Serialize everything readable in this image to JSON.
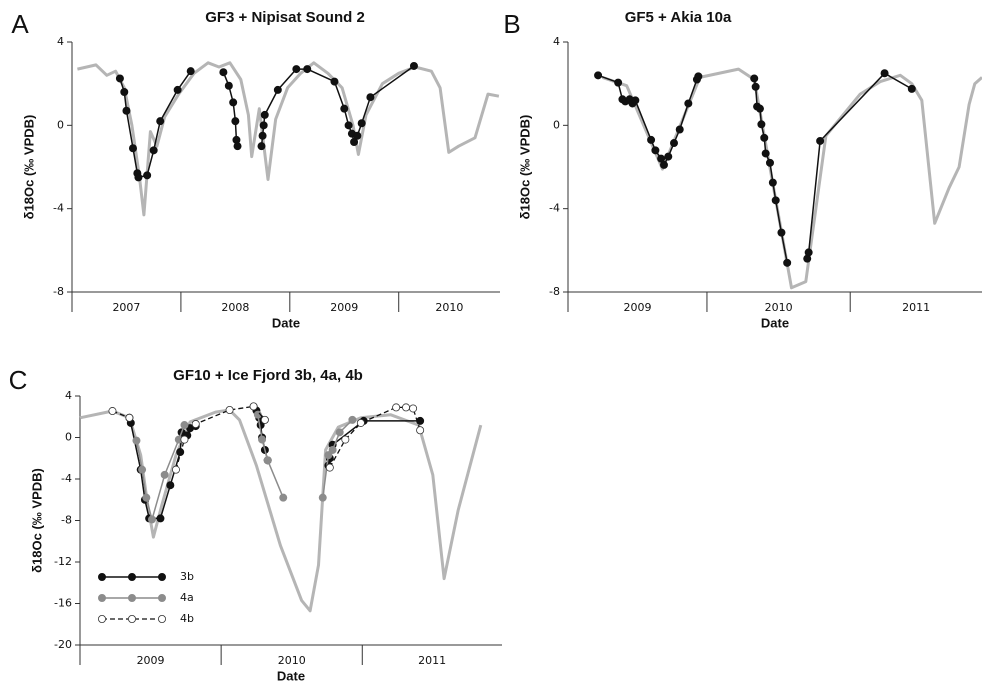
{
  "chart_data": [
    {
      "type": "line",
      "panel_label": "A",
      "title": "GF3 + Nipisat Sound 2",
      "xlabel": "Date",
      "ylabel": "δ18Oc (‰ VPDB)",
      "xlim": [
        2007,
        2010.93
      ],
      "xticks": [
        2008,
        2009,
        2010
      ],
      "categories": [
        "2007",
        "2008",
        "2009",
        "2010"
      ],
      "ylim": [
        -8,
        4
      ],
      "yticks": [
        4,
        0,
        -4,
        -8
      ],
      "series": [
        {
          "color": "#b5b5b5",
          "width": 3,
          "marker": "none",
          "x": [
            2007.05,
            2007.22,
            2007.32,
            2007.4,
            2007.48,
            2007.55,
            2007.62,
            2007.66,
            2007.72,
            2007.78,
            2007.85,
            2007.98,
            2008.12,
            2008.25,
            2008.35,
            2008.45,
            2008.55,
            2008.62,
            2008.65,
            2008.72,
            2008.8,
            2008.87,
            2008.98,
            2009.1,
            2009.22,
            2009.35,
            2009.48,
            2009.58,
            2009.63,
            2009.7,
            2009.85,
            2010.0,
            2010.15,
            2010.3,
            2010.38,
            2010.46,
            2010.55,
            2010.7,
            2010.82,
            2010.92
          ],
          "values": [
            2.7,
            2.9,
            2.4,
            2.6,
            1.8,
            0.0,
            -2.5,
            -4.3,
            -0.3,
            -1.0,
            0.4,
            1.5,
            2.5,
            3.0,
            2.8,
            3.0,
            2.2,
            0.5,
            -1.5,
            0.8,
            -2.6,
            0.3,
            1.8,
            2.5,
            3.0,
            2.5,
            1.8,
            0.0,
            -1.4,
            0.5,
            2.0,
            2.5,
            2.8,
            2.6,
            1.8,
            -1.3,
            -1.0,
            -0.6,
            1.5,
            1.4
          ]
        },
        {
          "color": "#111111",
          "width": 1.5,
          "marker": "filled",
          "x": [
            2007.44,
            2007.48,
            2007.5,
            2007.56,
            2007.6,
            2007.61,
            2007.69,
            2007.75,
            2007.81,
            2007.97,
            2008.09,
            null,
            2008.39,
            2008.44,
            2008.48,
            2008.5,
            2008.51,
            2008.52,
            null,
            2008.74,
            2008.75,
            2008.76,
            2008.77,
            2008.89,
            2009.06,
            2009.16,
            2009.41,
            2009.5,
            2009.54,
            2009.57,
            2009.59,
            2009.62,
            2009.66,
            2009.74,
            2010.14
          ],
          "values": [
            2.25,
            1.6,
            0.7,
            -1.1,
            -2.3,
            -2.5,
            -2.4,
            -1.2,
            0.2,
            1.7,
            2.6,
            null,
            2.55,
            1.9,
            1.1,
            0.2,
            -0.7,
            -1.0,
            null,
            -1.0,
            -0.5,
            0,
            0.5,
            1.7,
            2.7,
            2.7,
            2.1,
            0.8,
            0,
            -0.4,
            -0.8,
            -0.5,
            0.1,
            1.35,
            2.85
          ]
        }
      ]
    },
    {
      "type": "line",
      "panel_label": "B",
      "title": "GF5 + Akia 10a",
      "xlabel": "Date",
      "ylabel": "δ18Oc (‰ VPDB)",
      "xlim": [
        2009.03,
        2011.92
      ],
      "xticks": [
        2010,
        2011
      ],
      "categories": [
        "2009",
        "2010",
        "2011"
      ],
      "ylim": [
        -8,
        4
      ],
      "yticks": [
        4,
        0,
        -4,
        -8
      ],
      "series": [
        {
          "color": "#b5b5b5",
          "width": 3,
          "marker": "none",
          "x": [
            2009.27,
            2009.44,
            2009.69,
            2009.95,
            2010.22,
            2010.33,
            2010.59,
            2010.69,
            2010.83,
            2011.07,
            2011.21,
            2011.35,
            2011.43,
            2011.5,
            2011.59,
            2011.69,
            2011.76,
            2011.83,
            2011.87,
            2011.92
          ],
          "values": [
            2.3,
            1.9,
            -2.1,
            2.3,
            2.7,
            2.2,
            -7.8,
            -7.5,
            -0.5,
            1.5,
            2.1,
            2.4,
            2.0,
            1.2,
            -4.7,
            -3.0,
            -2.0,
            1.0,
            2.0,
            2.3
          ]
        },
        {
          "color": "#111111",
          "width": 1.5,
          "marker": "filled",
          "x": [
            2009.24,
            2009.38,
            2009.41,
            2009.43,
            2009.46,
            2009.48,
            2009.5,
            2009.61,
            2009.64,
            2009.68,
            2009.7,
            2009.73,
            2009.77,
            2009.81,
            2009.87,
            2009.93,
            2009.94,
            null,
            2010.33,
            2010.34,
            2010.35,
            2010.37,
            2010.38,
            2010.4,
            2010.41,
            2010.44,
            2010.46,
            2010.48,
            2010.52,
            2010.56,
            null,
            2010.7,
            2010.71,
            2010.79,
            2011.24,
            2011.43
          ],
          "values": [
            2.4,
            2.05,
            1.25,
            1.15,
            1.25,
            1.05,
            1.2,
            -0.7,
            -1.2,
            -1.6,
            -1.9,
            -1.5,
            -0.85,
            -0.2,
            1.05,
            2.2,
            2.35,
            null,
            2.25,
            1.85,
            0.9,
            0.8,
            0.05,
            -0.6,
            -1.35,
            -1.8,
            -2.75,
            -3.6,
            -5.15,
            -6.6,
            null,
            -6.4,
            -6.1,
            -0.75,
            2.5,
            1.75
          ]
        }
      ]
    },
    {
      "type": "line",
      "panel_label": "C",
      "title": "GF10 + Ice Fjord 3b, 4a, 4b",
      "xlabel": "Date",
      "ylabel": "δ18Oc (‰ VPDB)",
      "xlim": [
        2009.0,
        2011.99
      ],
      "xticks": [
        2010,
        2011
      ],
      "categories": [
        "2009",
        "2010",
        "2011"
      ],
      "ylim": [
        -20,
        4
      ],
      "yticks": [
        4,
        0,
        -4,
        -8,
        -12,
        -16,
        -20
      ],
      "legend": "lower left",
      "series": [
        {
          "color": "#b5b5b5",
          "width": 3,
          "marker": "none",
          "x": [
            2009.0,
            2009.23,
            2009.35,
            2009.43,
            2009.48,
            2009.52,
            2009.58,
            2009.68,
            2009.78,
            2009.96,
            2010.06,
            2010.13,
            2010.25,
            2010.42,
            2010.57,
            2010.63,
            2010.69,
            2010.74,
            2010.83,
            2010.99,
            2011.2,
            2011.4,
            2011.5,
            2011.58,
            2011.68,
            2011.84
          ],
          "values": [
            1.9,
            2.55,
            1.9,
            -1.7,
            -6.5,
            -9.6,
            -6.5,
            -1.7,
            1.5,
            2.45,
            2.65,
            1.7,
            -2.7,
            -10.4,
            -15.7,
            -16.7,
            -12.3,
            -1.2,
            1.0,
            1.9,
            2.2,
            1.2,
            -3.6,
            -13.6,
            -7.0,
            1.2
          ]
        },
        {
          "name": "3b",
          "color": "#111111",
          "width": 1.5,
          "marker": "filled",
          "x": [
            2009.35,
            2009.36,
            2009.43,
            2009.46,
            2009.49,
            2009.57,
            2009.64,
            2009.71,
            2009.72,
            2009.76,
            2009.78,
            2009.82,
            null,
            2010.25,
            2010.27,
            2010.28,
            2010.29,
            2010.31,
            2010.33,
            null,
            2010.76,
            2010.77,
            2010.79,
            2011.01,
            2011.41
          ],
          "values": [
            1.9,
            1.4,
            -3.1,
            -6.0,
            -7.8,
            -7.8,
            -4.6,
            -1.4,
            0.5,
            0.2,
            0.9,
            1.1,
            null,
            2.6,
            1.9,
            1.2,
            0,
            -1.2,
            -2.2,
            null,
            -2.7,
            -2.0,
            -0.7,
            1.6,
            1.6
          ]
        },
        {
          "name": "4a",
          "color": "#8c8c8c",
          "width": 1.5,
          "marker": "filled",
          "x": [
            2009.4,
            2009.44,
            2009.47,
            2009.51,
            2009.6,
            2009.7,
            2009.74,
            null,
            2010.26,
            2010.29,
            2010.33,
            2010.44,
            null,
            2010.72,
            2010.76,
            2010.79,
            2010.84,
            2010.93
          ],
          "values": [
            -0.3,
            -3.1,
            -5.8,
            -7.9,
            -3.6,
            -0.2,
            1.2,
            null,
            2.2,
            -0.2,
            -2.2,
            -5.8,
            null,
            -5.8,
            -1.7,
            -1.2,
            0.5,
            1.7
          ]
        },
        {
          "name": "4b",
          "color": "#111111",
          "width": 1.3,
          "marker": "open",
          "dash": true,
          "x": [
            2009.23,
            2009.35,
            null,
            2009.68,
            2009.74,
            2009.82,
            2010.06,
            2010.23,
            2010.31,
            null,
            2010.77,
            2010.88,
            2010.99,
            2011.24,
            2011.31,
            2011.36,
            2011.41
          ],
          "values": [
            2.55,
            1.9,
            null,
            -3.1,
            -0.2,
            1.3,
            2.65,
            3.0,
            1.7,
            null,
            -2.9,
            -0.2,
            1.4,
            2.9,
            2.9,
            2.8,
            0.7
          ]
        }
      ]
    }
  ]
}
